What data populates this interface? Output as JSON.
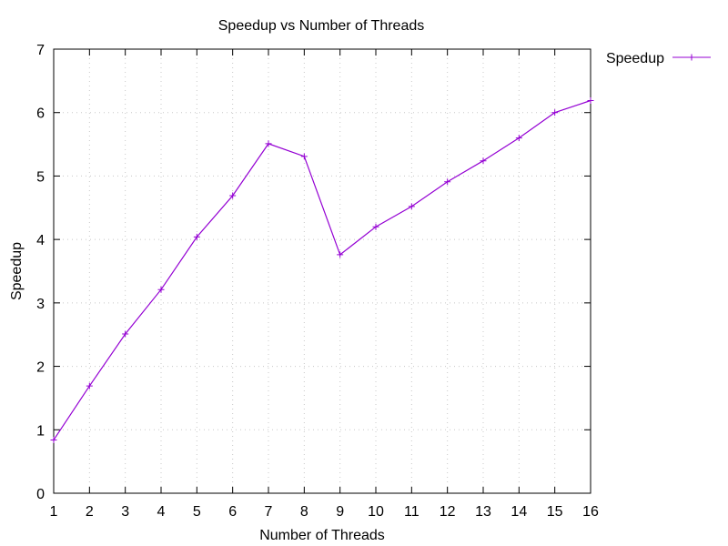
{
  "chart_data": {
    "type": "line",
    "title": "Speedup vs Number of Threads",
    "xlabel": "Number of Threads",
    "ylabel": "Speedup",
    "xlim": [
      1,
      16
    ],
    "ylim": [
      0,
      7
    ],
    "xticks": [
      "1",
      "2",
      "3",
      "4",
      "5",
      "6",
      "7",
      "8",
      "9",
      "10",
      "11",
      "12",
      "13",
      "14",
      "15",
      "16"
    ],
    "yticks": [
      "0",
      "1",
      "2",
      "3",
      "4",
      "5",
      "6",
      "7"
    ],
    "grid": true,
    "legend_position": "outside-top-right",
    "series": [
      {
        "name": "Speedup",
        "color": "#9400d3",
        "marker": "plus",
        "x": [
          1,
          2,
          3,
          4,
          5,
          6,
          7,
          8,
          9,
          10,
          11,
          12,
          13,
          14,
          15,
          16
        ],
        "values": [
          0.84,
          1.69,
          2.51,
          3.21,
          4.04,
          4.69,
          5.51,
          5.31,
          3.76,
          4.2,
          4.52,
          4.91,
          5.24,
          5.6,
          6.0,
          6.19
        ]
      }
    ]
  }
}
